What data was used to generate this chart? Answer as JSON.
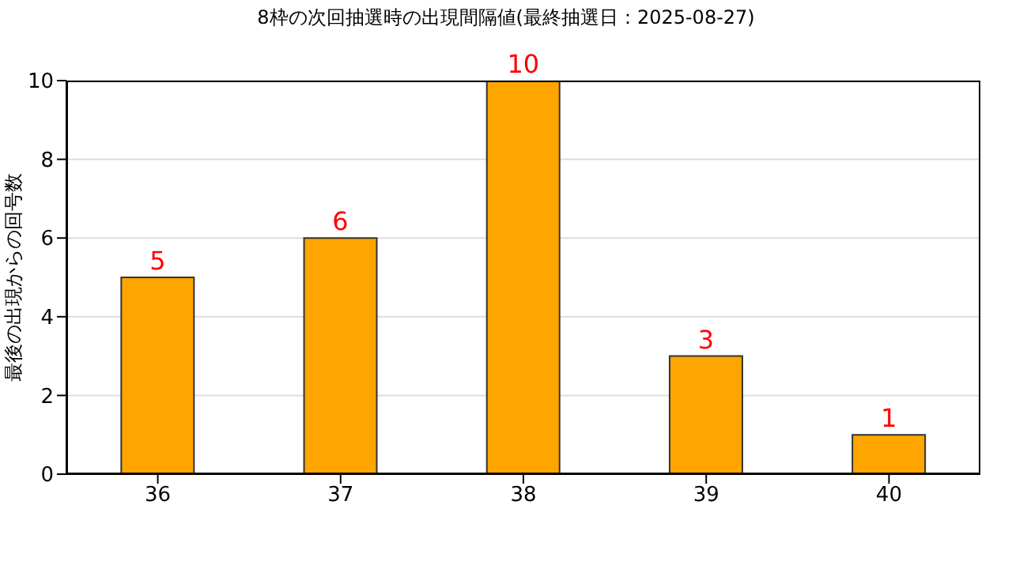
{
  "chart_data": {
    "type": "bar",
    "title": "8枠の次回抽選時の出現間隔値(最終抽選日：2025-08-27)",
    "ylabel": "最後の出現からの回号数",
    "categories": [
      "36",
      "37",
      "38",
      "39",
      "40"
    ],
    "values": [
      5,
      6,
      10,
      3,
      1
    ],
    "color": "#ffa500",
    "ylim": [
      0,
      10
    ],
    "yticks": [
      0,
      2,
      4,
      6,
      8,
      10
    ],
    "grid": "y",
    "data_labels": true,
    "legend": false
  }
}
